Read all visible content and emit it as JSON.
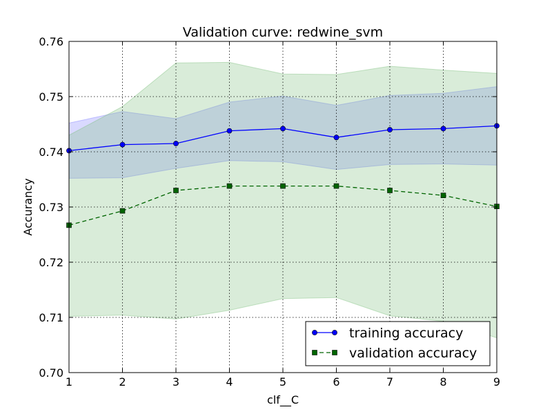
{
  "chart_data": {
    "type": "line",
    "title": "Validation curve: redwine_svm",
    "xlabel": "clf__C",
    "ylabel": "Accurancy",
    "x": [
      1,
      2,
      3,
      4,
      5,
      6,
      7,
      8,
      9
    ],
    "xlim": [
      1,
      9
    ],
    "ylim": [
      0.7,
      0.76
    ],
    "xticks": [
      "1",
      "2",
      "3",
      "4",
      "5",
      "6",
      "7",
      "8",
      "9"
    ],
    "yticks": [
      "0.70",
      "0.71",
      "0.72",
      "0.73",
      "0.74",
      "0.75",
      "0.76"
    ],
    "grid": true,
    "legend_position": "lower-right",
    "series": [
      {
        "name": "training accuracy",
        "color": "#0000ff",
        "band_color": "#8080ff",
        "marker": "circle",
        "line_style": "solid",
        "values": [
          0.7402,
          0.7413,
          0.7415,
          0.7438,
          0.7442,
          0.7426,
          0.744,
          0.7442,
          0.7447
        ],
        "upper": [
          0.7452,
          0.7473,
          0.746,
          0.749,
          0.7501,
          0.7484,
          0.7502,
          0.7506,
          0.7518
        ],
        "lower": [
          0.7352,
          0.7353,
          0.737,
          0.7384,
          0.7382,
          0.7368,
          0.7377,
          0.7378,
          0.7376
        ]
      },
      {
        "name": "validation accuracy",
        "color": "#006400",
        "band_color": "#80c080",
        "marker": "square",
        "line_style": "dashed",
        "values": [
          0.7267,
          0.7293,
          0.733,
          0.7338,
          0.7338,
          0.7338,
          0.733,
          0.7321,
          0.7301
        ],
        "upper": [
          0.743,
          0.7482,
          0.7561,
          0.7562,
          0.7541,
          0.754,
          0.7555,
          0.7548,
          0.7542
        ],
        "lower": [
          0.7102,
          0.7104,
          0.7097,
          0.7113,
          0.7134,
          0.7136,
          0.7103,
          0.7093,
          0.7063
        ]
      }
    ]
  }
}
